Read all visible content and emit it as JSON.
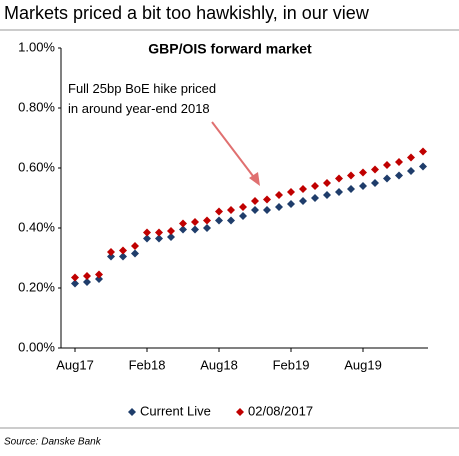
{
  "title": "Markets priced a bit too hawkishly, in our view",
  "source": "Source: Danske Bank",
  "chart_data": {
    "type": "scatter",
    "title": "GBP/OIS forward market",
    "annotation": "Full 25bp BoE hike priced\nin around year-end 2018",
    "categories": [
      "Aug17",
      null,
      null,
      null,
      null,
      null,
      "Feb18",
      null,
      null,
      null,
      null,
      null,
      "Aug18",
      null,
      null,
      null,
      null,
      null,
      "Feb19",
      null,
      null,
      null,
      null,
      null,
      "Aug19",
      null,
      null,
      null,
      null,
      null
    ],
    "series": [
      {
        "name": "Current Live",
        "color": "#1f3d6b",
        "values": [
          0.215,
          0.22,
          0.23,
          0.305,
          0.305,
          0.315,
          0.365,
          0.365,
          0.37,
          0.395,
          0.395,
          0.4,
          0.425,
          0.425,
          0.44,
          0.46,
          0.46,
          0.47,
          0.48,
          0.49,
          0.5,
          0.51,
          0.52,
          0.53,
          0.54,
          0.55,
          0.565,
          0.575,
          0.59,
          0.605
        ]
      },
      {
        "name": "02/08/2017",
        "color": "#c00000",
        "values": [
          0.235,
          0.24,
          0.245,
          0.32,
          0.325,
          0.34,
          0.385,
          0.385,
          0.39,
          0.415,
          0.42,
          0.425,
          0.455,
          0.46,
          0.47,
          0.49,
          0.495,
          0.51,
          0.52,
          0.53,
          0.54,
          0.55,
          0.565,
          0.575,
          0.585,
          0.595,
          0.61,
          0.62,
          0.635,
          0.655
        ]
      }
    ],
    "ylim": [
      0,
      1.0
    ],
    "yticks": [
      {
        "value": 0,
        "label": "0.00%"
      },
      {
        "value": 0.2,
        "label": "0.20%"
      },
      {
        "value": 0.4,
        "label": "0.40%"
      },
      {
        "value": 0.6,
        "label": "0.60%"
      },
      {
        "value": 0.8,
        "label": "0.80%"
      },
      {
        "value": 1.0,
        "label": "1.00%"
      }
    ],
    "legend": "bottom"
  }
}
